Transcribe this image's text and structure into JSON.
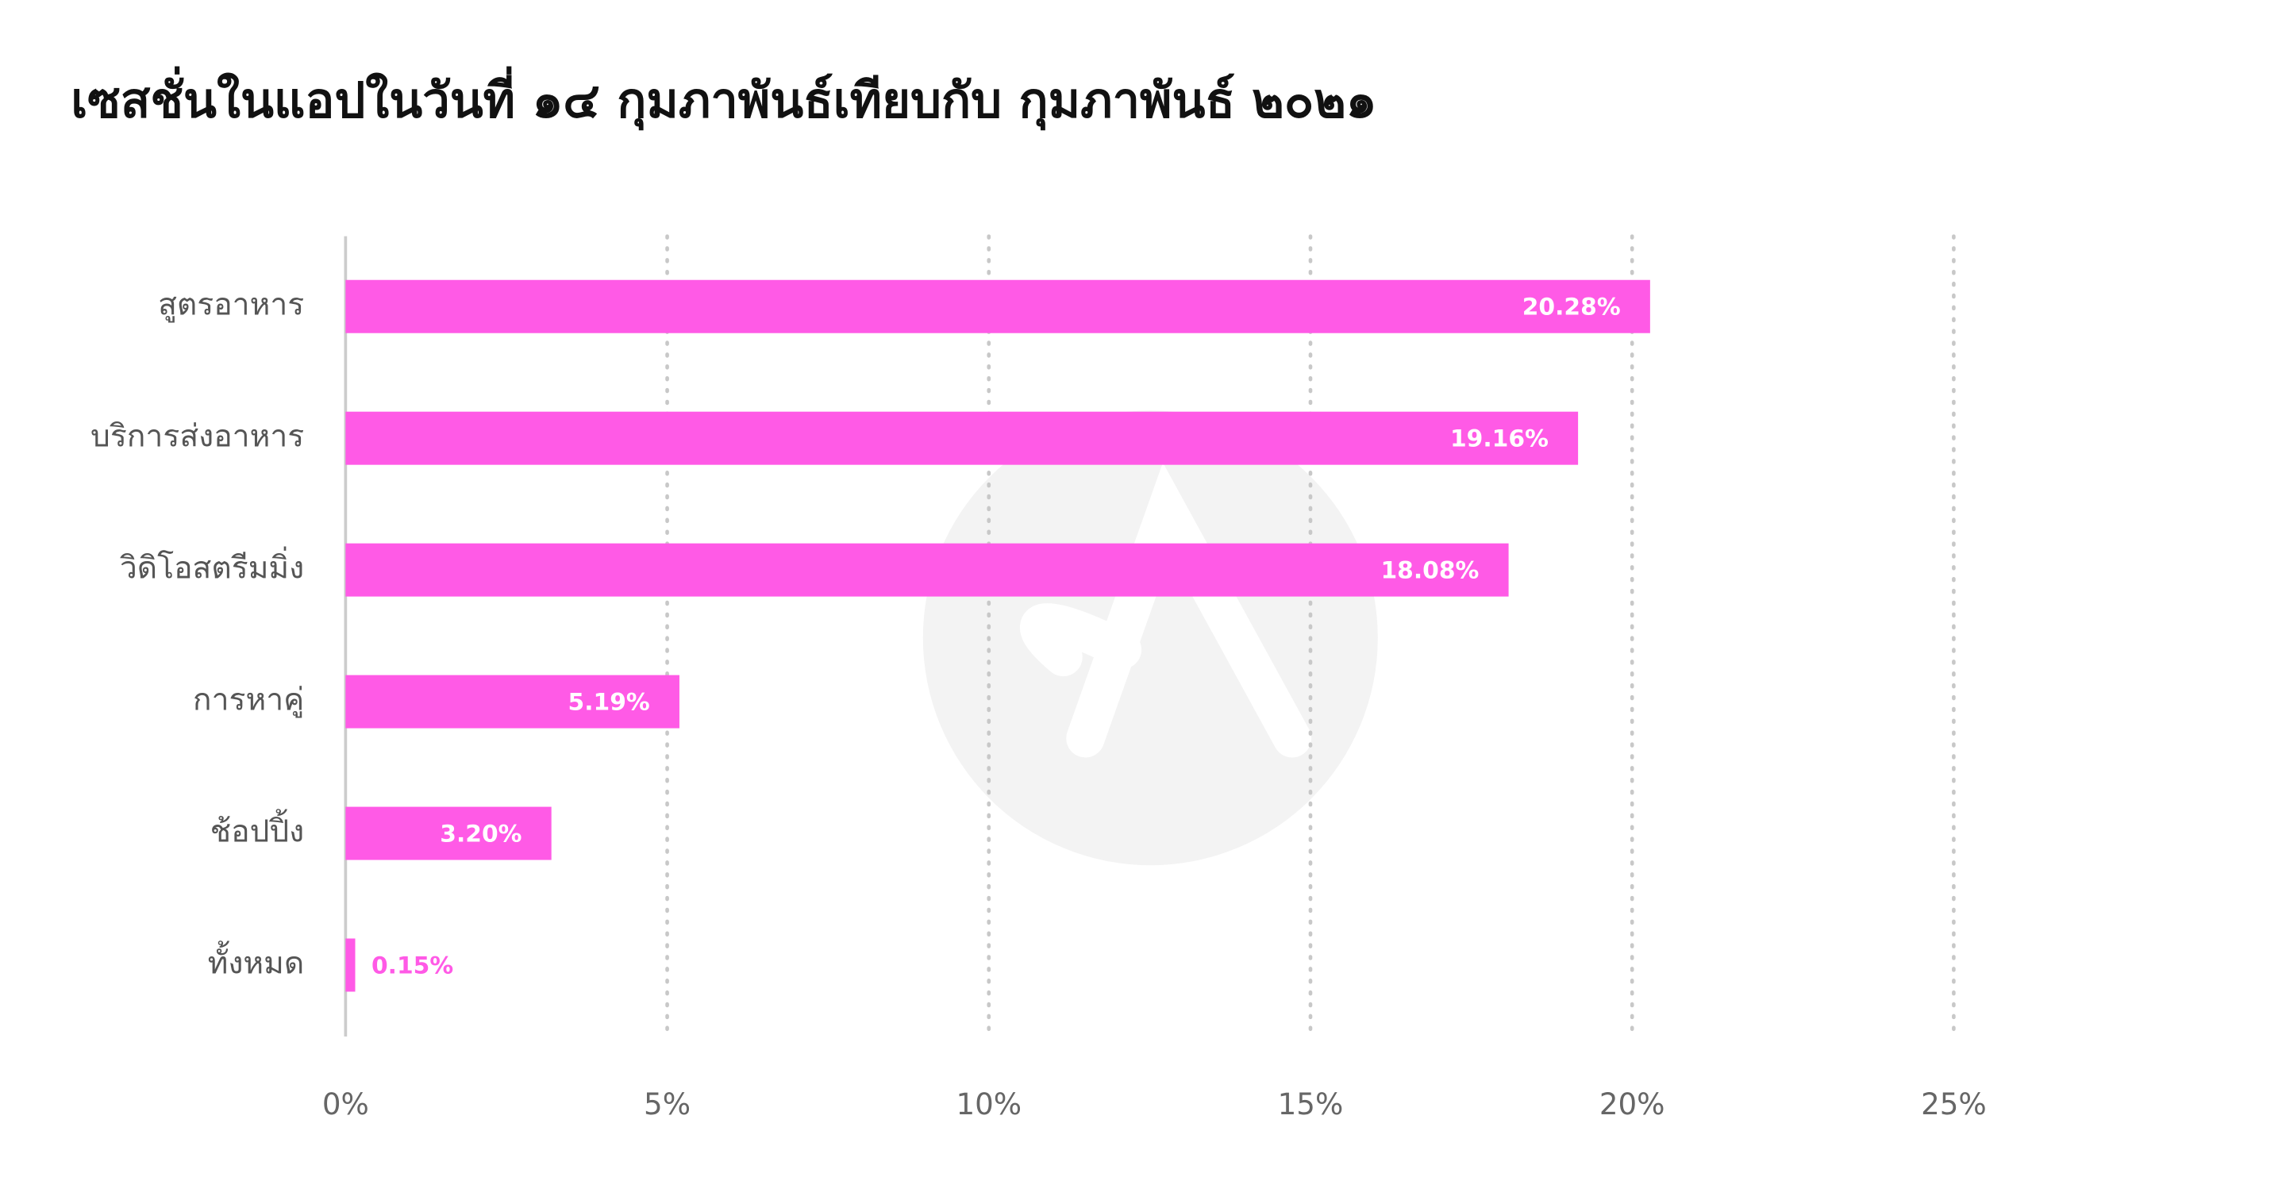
{
  "chart_data": {
    "type": "bar",
    "orientation": "horizontal",
    "title": "เซสชั่นในแอปในวันที่ ๑๔ กุมภาพันธ์เทียบกับ กุมภาพันธ์ ๒๐๒๑",
    "categories": [
      "สูตรอาหาร",
      "บริการส่งอาหาร",
      "วิดิโอสตรีมมิ่ง",
      "การหาคู่",
      "ช้อปปิ้ง",
      "ทั้งหมด"
    ],
    "values": [
      20.28,
      19.16,
      18.08,
      5.19,
      3.2,
      0.15
    ],
    "value_labels": [
      "20.28%",
      "19.16%",
      "18.08%",
      "5.19%",
      "3.20%",
      "0.15%"
    ],
    "color": "#ff5ae6",
    "xlim": [
      0,
      25
    ],
    "xticks": [
      {
        "value": 0,
        "label": "0%"
      },
      {
        "value": 5,
        "label": "5%"
      },
      {
        "value": 10,
        "label": "10%"
      },
      {
        "value": 15,
        "label": "15%"
      },
      {
        "value": 20,
        "label": "20%"
      },
      {
        "value": 25,
        "label": "25%"
      }
    ],
    "grid": true
  }
}
